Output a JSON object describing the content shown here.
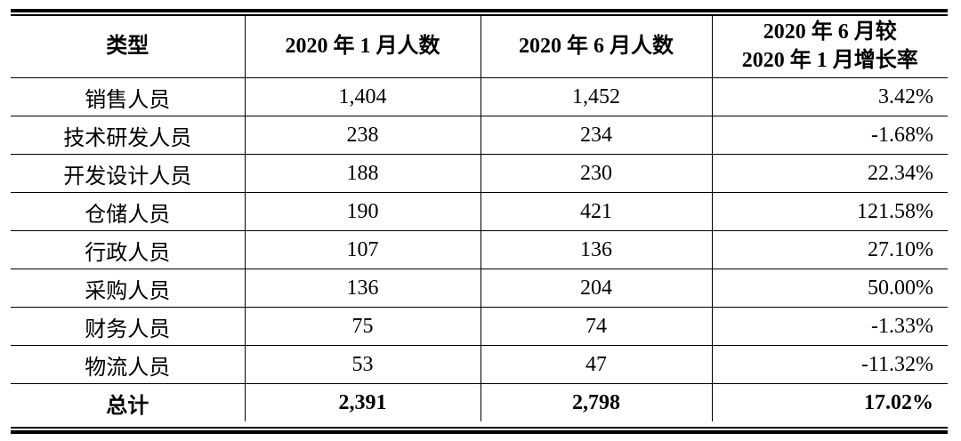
{
  "table": {
    "headers": [
      "类型",
      "2020 年 1 月人数",
      "2020 年 6 月人数",
      "2020 年 6 月较\n2020 年 1 月增长率"
    ],
    "rows": [
      [
        "销售人员",
        "1,404",
        "1,452",
        "3.42%"
      ],
      [
        "技术研发人员",
        "238",
        "234",
        "-1.68%"
      ],
      [
        "开发设计人员",
        "188",
        "230",
        "22.34%"
      ],
      [
        "仓储人员",
        "190",
        "421",
        "121.58%"
      ],
      [
        "行政人员",
        "107",
        "136",
        "27.10%"
      ],
      [
        "采购人员",
        "136",
        "204",
        "50.00%"
      ],
      [
        "财务人员",
        "75",
        "74",
        "-1.33%"
      ],
      [
        "物流人员",
        "53",
        "47",
        "-11.32%"
      ]
    ],
    "total": [
      "总计",
      "2,391",
      "2,798",
      "17.02%"
    ]
  }
}
